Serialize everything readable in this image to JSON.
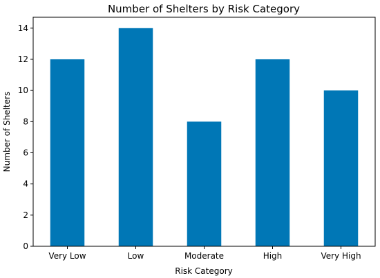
{
  "chart_data": {
    "type": "bar",
    "title": "Number of Shelters by Risk Category",
    "xlabel": "Risk Category",
    "ylabel": "Number of Shelters",
    "categories": [
      "Very Low",
      "Low",
      "Moderate",
      "High",
      "Very High"
    ],
    "values": [
      12,
      14,
      8,
      12,
      10
    ],
    "ylim": [
      0,
      14.7
    ],
    "yticks": [
      0,
      2,
      4,
      6,
      8,
      10,
      12,
      14
    ],
    "grid": false,
    "legend": "none",
    "bar_color": "#0077b6"
  }
}
